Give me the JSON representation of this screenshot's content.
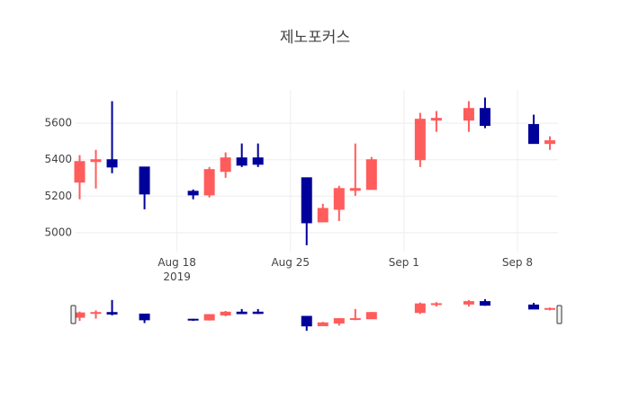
{
  "chart_data": {
    "type": "candlestick",
    "title": "제노포커스",
    "x": [
      "2019-08-12",
      "2019-08-13",
      "2019-08-14",
      "2019-08-16",
      "2019-08-19",
      "2019-08-20",
      "2019-08-21",
      "2019-08-22",
      "2019-08-23",
      "2019-08-26",
      "2019-08-27",
      "2019-08-28",
      "2019-08-29",
      "2019-08-30",
      "2019-09-02",
      "2019-09-03",
      "2019-09-05",
      "2019-09-06",
      "2019-09-09",
      "2019-09-10"
    ],
    "open": [
      5277,
      5390,
      5400,
      5360,
      5227,
      5207,
      5336,
      5410,
      5410,
      5301,
      5059,
      5128,
      5232,
      5237,
      5400,
      5617,
      5617,
      5681,
      5593,
      5489
    ],
    "high": [
      5425,
      5454,
      5721,
      5360,
      5237,
      5360,
      5440,
      5489,
      5489,
      5301,
      5158,
      5257,
      5489,
      5415,
      5657,
      5667,
      5721,
      5741,
      5647,
      5528
    ],
    "low": [
      5183,
      5242,
      5326,
      5128,
      5183,
      5193,
      5301,
      5360,
      5360,
      4931,
      5059,
      5064,
      5202,
      5237,
      5360,
      5553,
      5553,
      5573,
      5489,
      5454
    ],
    "close": [
      5390,
      5400,
      5360,
      5212,
      5207,
      5346,
      5410,
      5370,
      5375,
      5054,
      5133,
      5242,
      5242,
      5400,
      5622,
      5627,
      5681,
      5588,
      5489,
      5504
    ],
    "increasing_color": "#ff5c5c",
    "decreasing_color": "#00009b",
    "xlim": [
      "2019-08-11T18:00",
      "2019-09-10T12:00"
    ],
    "xticks": [
      {
        "value": "2019-08-18",
        "label": "Aug 18\n2019"
      },
      {
        "value": "2019-08-25",
        "label": "Aug 25"
      },
      {
        "value": "2019-09-01",
        "label": "Sep 1"
      },
      {
        "value": "2019-09-08",
        "label": "Sep 8"
      }
    ],
    "ylim": [
      4896,
      5783
    ],
    "yticks": [
      5000,
      5200,
      5400,
      5600
    ],
    "grid": true,
    "rangeslider": true
  }
}
